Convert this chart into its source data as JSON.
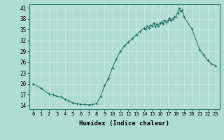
{
  "title": "",
  "xlabel": "Humidex (Indice chaleur)",
  "ylabel": "",
  "background_color": "#b0ddd2",
  "grid_color": "#c5e8e0",
  "line_color": "#2e7d6e",
  "marker_color": "#2e7d6e",
  "xlim": [
    -0.5,
    23.5
  ],
  "ylim": [
    13,
    42
  ],
  "yticks": [
    14,
    17,
    20,
    23,
    26,
    29,
    32,
    35,
    38,
    41
  ],
  "xticks": [
    0,
    1,
    2,
    3,
    4,
    5,
    6,
    7,
    8,
    9,
    10,
    11,
    12,
    13,
    14,
    15,
    16,
    17,
    18,
    19,
    20,
    21,
    22,
    23
  ],
  "x": [
    0,
    1,
    2,
    2.5,
    3,
    3.5,
    4,
    4.5,
    5,
    5.5,
    6,
    6.5,
    7,
    7.5,
    8,
    8.5,
    9,
    9.5,
    10,
    10.5,
    11,
    11.5,
    12,
    12.5,
    13,
    13.5,
    14,
    14.2,
    14.4,
    14.6,
    14.8,
    15,
    15.2,
    15.4,
    15.6,
    15.8,
    16,
    16.2,
    16.4,
    16.6,
    16.8,
    17,
    17.2,
    17.4,
    17.6,
    17.8,
    18,
    18.2,
    18.4,
    18.6,
    18.8,
    19,
    20,
    21,
    21.5,
    22,
    22.5,
    23
  ],
  "y": [
    20,
    18.8,
    17.2,
    17.0,
    16.6,
    16.4,
    15.8,
    15.4,
    14.8,
    14.5,
    14.4,
    14.3,
    14.2,
    14.3,
    14.6,
    16.5,
    19.5,
    21.5,
    24.5,
    27.0,
    29.0,
    30.5,
    31.5,
    32.5,
    33.5,
    34.5,
    35.5,
    35.0,
    36.0,
    35.5,
    36.2,
    36.0,
    36.8,
    35.8,
    36.5,
    36.0,
    36.8,
    37.2,
    36.5,
    37.5,
    37.0,
    37.5,
    38.2,
    37.5,
    38.0,
    38.5,
    38.5,
    39.5,
    40.8,
    40.0,
    40.5,
    38.5,
    35.2,
    29.5,
    28.0,
    26.5,
    25.5,
    25.0
  ]
}
